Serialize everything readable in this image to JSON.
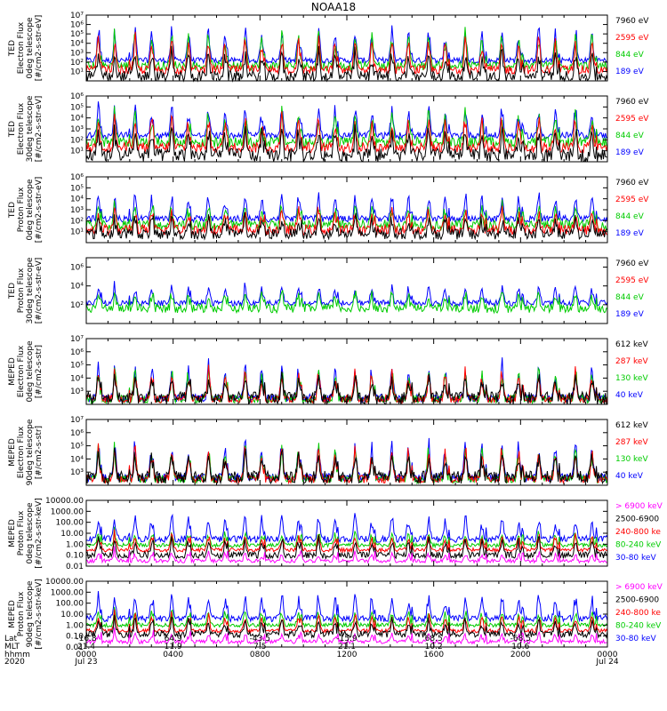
{
  "title": "NOAA18",
  "colors": {
    "blue": "#0000ff",
    "red": "#ff0000",
    "green": "#00cc00",
    "black": "#000000",
    "magenta": "#ff00ff"
  },
  "chart_data": {
    "type": "line",
    "x_range_hours": [
      0,
      24
    ],
    "x_ticks": [
      {
        "hour": 0,
        "lat": "-16.8",
        "mlt": "21.4",
        "hhmm": "0000",
        "date": "Jul 23"
      },
      {
        "hour": 4,
        "lat": "64.9",
        "mlt": "11.9",
        "hhmm": "0400",
        "date": ""
      },
      {
        "hour": 8,
        "lat": "-43.5",
        "mlt": "7.5",
        "hhmm": "0800",
        "date": ""
      },
      {
        "hour": 12,
        "lat": "-15.9",
        "mlt": "21.1",
        "hhmm": "1200",
        "date": ""
      },
      {
        "hour": 16,
        "lat": "68.5",
        "mlt": "10.2",
        "hhmm": "1600",
        "date": ""
      },
      {
        "hour": 20,
        "lat": "-68.5",
        "mlt": "10.6",
        "hhmm": "2000",
        "date": ""
      },
      {
        "hour": 24,
        "lat": "",
        "mlt": "",
        "hhmm": "0000",
        "date": "Jul 24"
      }
    ],
    "x_row_labels": [
      "Lat",
      "MLT",
      "hhmm",
      "2020"
    ],
    "panels": [
      {
        "id": "ted-e-0",
        "ylabel": [
          "TED",
          "Electron Flux",
          "0deg telescope",
          "[#/cm2-s-str-eV]"
        ],
        "yscale": "log",
        "ylim": [
          1,
          10000000
        ],
        "ytick_labels": [
          "10¹",
          "10²",
          "10³",
          "10⁴",
          "10⁵",
          "10⁶",
          "10⁷"
        ],
        "ytick_values": [
          10,
          100,
          1000,
          10000,
          100000,
          1000000,
          10000000
        ],
        "legend": [
          {
            "label": "7960 eV",
            "color": "black"
          },
          {
            "label": "2595 eV",
            "color": "red"
          },
          {
            "label": "844 eV",
            "color": "green"
          },
          {
            "label": "189 eV",
            "color": "blue"
          }
        ],
        "series": [
          {
            "name": "189 eV",
            "color": "blue",
            "baseline": 150,
            "peak": 1500000,
            "noise": 2
          },
          {
            "name": "844 eV",
            "color": "green",
            "baseline": 40,
            "peak": 400000,
            "noise": 3
          },
          {
            "name": "2595 eV",
            "color": "red",
            "baseline": 15,
            "peak": 120000,
            "noise": 3
          },
          {
            "name": "7960 eV",
            "color": "black",
            "baseline": 3,
            "peak": 3000,
            "noise": 4
          }
        ]
      },
      {
        "id": "ted-e-30",
        "ylabel": [
          "TED",
          "Electron Flux",
          "30deg telescope",
          "[#/cm2-s-str-eV]"
        ],
        "yscale": "log",
        "ylim": [
          1,
          1000000
        ],
        "ytick_labels": [
          "10¹",
          "10²",
          "10³",
          "10⁴",
          "10⁵",
          "10⁶"
        ],
        "ytick_values": [
          10,
          100,
          1000,
          10000,
          100000,
          1000000
        ],
        "legend": [
          {
            "label": "7960 eV",
            "color": "black"
          },
          {
            "label": "2595 eV",
            "color": "red"
          },
          {
            "label": "844 eV",
            "color": "green"
          },
          {
            "label": "189 eV",
            "color": "blue"
          }
        ],
        "series": [
          {
            "name": "189 eV",
            "color": "blue",
            "baseline": 250,
            "peak": 300000,
            "noise": 2
          },
          {
            "name": "844 eV",
            "color": "green",
            "baseline": 60,
            "peak": 80000,
            "noise": 3
          },
          {
            "name": "2595 eV",
            "color": "red",
            "baseline": 20,
            "peak": 30000,
            "noise": 3
          },
          {
            "name": "7960 eV",
            "color": "black",
            "baseline": 4,
            "peak": 2000,
            "noise": 4
          }
        ]
      },
      {
        "id": "ted-p-0",
        "ylabel": [
          "TED",
          "Proton Flux",
          "0deg telescope",
          "[#/cm2-s-str-eV]"
        ],
        "yscale": "log",
        "ylim": [
          1,
          1000000
        ],
        "ytick_labels": [
          "10¹",
          "10²",
          "10³",
          "10⁴",
          "10⁵",
          "10⁶"
        ],
        "ytick_values": [
          10,
          100,
          1000,
          10000,
          100000,
          1000000
        ],
        "legend": [
          {
            "label": "7960 eV",
            "color": "black"
          },
          {
            "label": "2595 eV",
            "color": "red"
          },
          {
            "label": "844 eV",
            "color": "green"
          },
          {
            "label": "189 eV",
            "color": "blue"
          }
        ],
        "series": [
          {
            "name": "189 eV",
            "color": "blue",
            "baseline": 150,
            "peak": 50000,
            "noise": 2
          },
          {
            "name": "844 eV",
            "color": "green",
            "baseline": 40,
            "peak": 5000,
            "noise": 3
          },
          {
            "name": "2595 eV",
            "color": "red",
            "baseline": 15,
            "peak": 2000,
            "noise": 3
          },
          {
            "name": "7960 eV",
            "color": "black",
            "baseline": 6,
            "peak": 300,
            "noise": 3
          }
        ]
      },
      {
        "id": "ted-p-30",
        "ylabel": [
          "TED",
          "Proton Flux",
          "30deg telescope",
          "[#/cm2-s-str-eV]"
        ],
        "yscale": "log",
        "ylim": [
          1,
          10000000
        ],
        "ytick_labels": [
          "10²",
          "10⁴",
          "10⁶"
        ],
        "ytick_values": [
          100,
          10000,
          1000000
        ],
        "legend": [
          {
            "label": "7960 eV",
            "color": "black"
          },
          {
            "label": "2595 eV",
            "color": "red"
          },
          {
            "label": "844 eV",
            "color": "green"
          },
          {
            "label": "189 eV",
            "color": "blue"
          }
        ],
        "series": [
          {
            "name": "189 eV",
            "color": "blue",
            "baseline": 150,
            "peak": 20000,
            "noise": 2
          },
          {
            "name": "844 eV",
            "color": "green",
            "baseline": 40,
            "peak": 4000,
            "noise": 3
          }
        ]
      },
      {
        "id": "meped-e-0",
        "ylabel": [
          "MEPED",
          "Electron Flux",
          "0deg telescope",
          "[#/cm2-s-str]"
        ],
        "yscale": "log",
        "ylim": [
          100,
          10000000
        ],
        "ytick_labels": [
          "10³",
          "10⁴",
          "10⁵",
          "10⁶",
          "10⁷"
        ],
        "ytick_values": [
          1000,
          10000,
          100000,
          1000000,
          10000000
        ],
        "legend": [
          {
            "label": "612 keV",
            "color": "black"
          },
          {
            "label": "287 keV",
            "color": "red"
          },
          {
            "label": "130 keV",
            "color": "green"
          },
          {
            "label": "40 keV",
            "color": "blue"
          }
        ],
        "series": [
          {
            "name": "40 keV",
            "color": "blue",
            "baseline": 300,
            "peak": 200000,
            "noise": 2
          },
          {
            "name": "130 keV",
            "color": "green",
            "baseline": 250,
            "peak": 100000,
            "noise": 2
          },
          {
            "name": "287 keV",
            "color": "red",
            "baseline": 260,
            "peak": 80000,
            "noise": 2
          },
          {
            "name": "612 keV",
            "color": "black",
            "baseline": 300,
            "peak": 20000,
            "noise": 3
          }
        ]
      },
      {
        "id": "meped-e-90",
        "ylabel": [
          "MEPED",
          "Electron Flux",
          "90deg telescope",
          "[#/cm2-s-str]"
        ],
        "yscale": "log",
        "ylim": [
          100,
          10000000
        ],
        "ytick_labels": [
          "10³",
          "10⁴",
          "10⁵",
          "10⁶",
          "10⁷"
        ],
        "ytick_values": [
          1000,
          10000,
          100000,
          1000000,
          10000000
        ],
        "legend": [
          {
            "label": "612 keV",
            "color": "black"
          },
          {
            "label": "287 keV",
            "color": "red"
          },
          {
            "label": "130 keV",
            "color": "green"
          },
          {
            "label": "40 keV",
            "color": "blue"
          }
        ],
        "series": [
          {
            "name": "40 keV",
            "color": "blue",
            "baseline": 400,
            "peak": 500000,
            "noise": 2
          },
          {
            "name": "130 keV",
            "color": "green",
            "baseline": 300,
            "peak": 200000,
            "noise": 2
          },
          {
            "name": "287 keV",
            "color": "red",
            "baseline": 300,
            "peak": 150000,
            "noise": 2
          },
          {
            "name": "612 keV",
            "color": "black",
            "baseline": 400,
            "peak": 60000,
            "noise": 3
          }
        ]
      },
      {
        "id": "meped-p-0",
        "ylabel": [
          "MEPED",
          "Proton Flux",
          "0deg telescope",
          "[#/cm2-s-str-keV]"
        ],
        "yscale": "log",
        "ylim": [
          0.01,
          10000
        ],
        "ytick_labels": [
          "0.01",
          "0.10",
          "1.00",
          "10.00",
          "100.00",
          "1000.00",
          "10000.00"
        ],
        "ytick_values": [
          0.01,
          0.1,
          1,
          10,
          100,
          1000,
          10000
        ],
        "legend": [
          {
            "label": "> 6900 keV",
            "color": "magenta"
          },
          {
            "label": "2500-6900",
            "color": "black"
          },
          {
            "label": "240-800 ke",
            "color": "red"
          },
          {
            "label": "80-240 keV",
            "color": "green"
          },
          {
            "label": "30-80 keV",
            "color": "blue"
          }
        ],
        "series": [
          {
            "name": "30-80 keV",
            "color": "blue",
            "baseline": 3,
            "peak": 800,
            "noise": 2
          },
          {
            "name": "80-240 keV",
            "color": "green",
            "baseline": 0.8,
            "peak": 20,
            "noise": 1.5
          },
          {
            "name": "240-800 ke",
            "color": "red",
            "baseline": 0.3,
            "peak": 10,
            "noise": 1.5
          },
          {
            "name": "2500-6900",
            "color": "black",
            "baseline": 0.1,
            "peak": 5,
            "noise": 2
          },
          {
            "name": "> 6900 keV",
            "color": "magenta",
            "baseline": 0.03,
            "peak": 0.2,
            "noise": 1.5
          }
        ]
      },
      {
        "id": "meped-p-90",
        "ylabel": [
          "MEPED",
          "Proton Flux",
          "90deg telescope",
          "[#/cm2-s-str-keV]"
        ],
        "yscale": "log",
        "ylim": [
          0.01,
          10000
        ],
        "ytick_labels": [
          "0.01",
          "0.10",
          "1.00",
          "10.00",
          "100.00",
          "1000.00",
          "10000.00"
        ],
        "ytick_values": [
          0.01,
          0.1,
          1,
          10,
          100,
          1000,
          10000
        ],
        "legend": [
          {
            "label": "> 6900 keV",
            "color": "magenta"
          },
          {
            "label": "2500-6900",
            "color": "black"
          },
          {
            "label": "240-800 ke",
            "color": "red"
          },
          {
            "label": "80-240 keV",
            "color": "green"
          },
          {
            "label": "30-80 keV",
            "color": "blue"
          }
        ],
        "series": [
          {
            "name": "30-80 keV",
            "color": "blue",
            "baseline": 4,
            "peak": 1000,
            "noise": 2
          },
          {
            "name": "80-240 keV",
            "color": "green",
            "baseline": 1,
            "peak": 30,
            "noise": 1.5
          },
          {
            "name": "240-800 ke",
            "color": "red",
            "baseline": 0.3,
            "peak": 15,
            "noise": 1.5
          },
          {
            "name": "2500-6900",
            "color": "black",
            "baseline": 0.15,
            "peak": 5,
            "noise": 2
          },
          {
            "name": "> 6900 keV",
            "color": "magenta",
            "baseline": 0.03,
            "peak": 0.2,
            "noise": 1.5
          }
        ]
      }
    ],
    "orbit_period_hours": 1.69,
    "spike_hours": [
      0.7,
      1.3,
      2.0,
      3.1,
      4.8,
      6.5,
      8.2,
      9.9,
      11.6,
      13.3,
      15.0,
      16.7,
      18.4,
      20.1,
      21.8,
      23.5
    ]
  }
}
